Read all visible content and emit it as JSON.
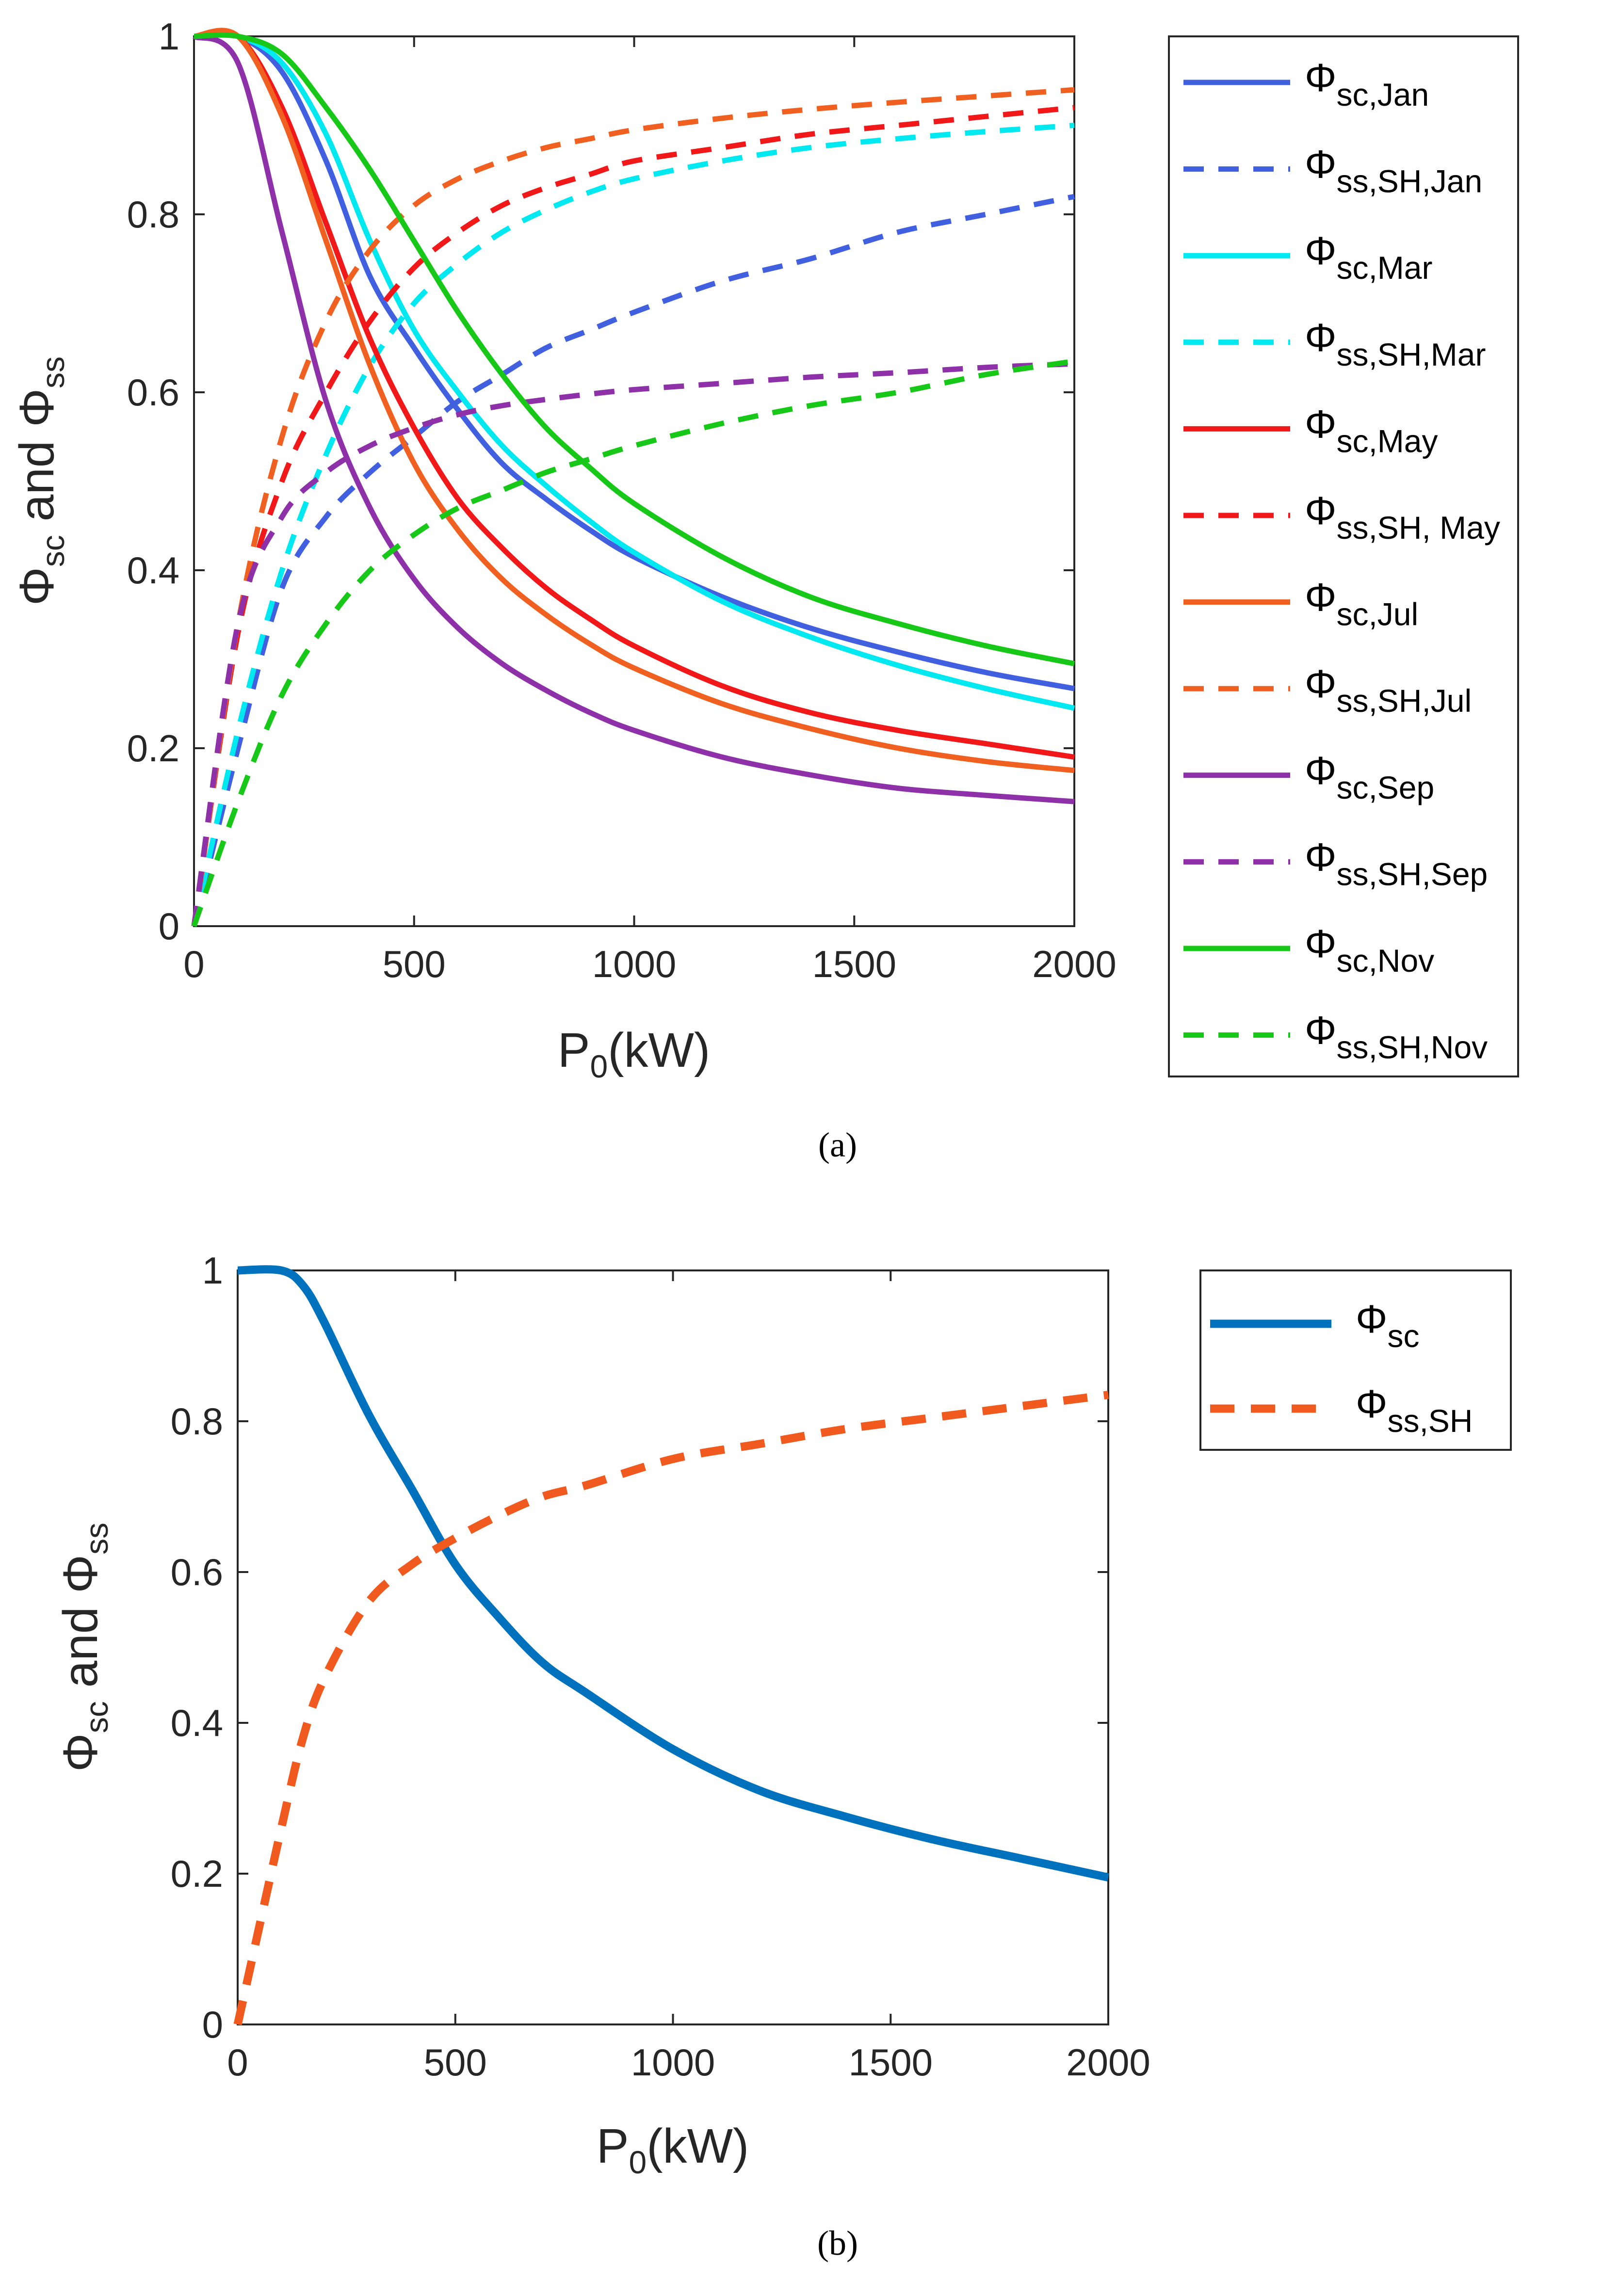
{
  "chart_data": [
    {
      "id": "a",
      "type": "line",
      "caption": "(a)",
      "xlabel": "P0(kW)",
      "xlabel_main": "P",
      "xlabel_sub": "0",
      "xlabel_rest": "(kW)",
      "ylabel": "Φsc and Φss",
      "ylabel_parts": {
        "phi1": "Φ",
        "sub1": "sc",
        "mid": " and ",
        "phi2": "Φ",
        "sub2": "ss"
      },
      "xlim": [
        0,
        2000
      ],
      "ylim": [
        0,
        1
      ],
      "xticks": [
        0,
        500,
        1000,
        1500,
        2000
      ],
      "yticks": [
        0,
        0.2,
        0.4,
        0.6,
        0.8,
        1
      ],
      "grid": false,
      "legend_position": "outside-right",
      "x": [
        0,
        100,
        200,
        300,
        400,
        500,
        600,
        700,
        800,
        900,
        1000,
        1200,
        1400,
        1600,
        1800,
        2000
      ],
      "series": [
        {
          "name": "Φsc,Jan",
          "symbol": "Φ",
          "sub": "sc,Jan",
          "color": "#4060e0",
          "style": "solid",
          "values": [
            1,
            1,
            0.96,
            0.86,
            0.73,
            0.65,
            0.58,
            0.52,
            0.48,
            0.445,
            0.415,
            0.37,
            0.335,
            0.308,
            0.285,
            0.267
          ]
        },
        {
          "name": "Φss,SH,Jan",
          "symbol": "Φ",
          "sub": "ss,SH,Jan",
          "color": "#4060e0",
          "style": "dashed",
          "values": [
            0,
            0.2,
            0.38,
            0.46,
            0.51,
            0.55,
            0.59,
            0.62,
            0.65,
            0.67,
            0.69,
            0.725,
            0.75,
            0.78,
            0.8,
            0.82
          ]
        },
        {
          "name": "Φsc,Mar",
          "symbol": "Φ",
          "sub": "sc,Mar",
          "color": "#00e8f0",
          "style": "solid",
          "values": [
            1,
            1,
            0.97,
            0.89,
            0.77,
            0.67,
            0.6,
            0.54,
            0.495,
            0.455,
            0.42,
            0.365,
            0.325,
            0.293,
            0.267,
            0.245
          ]
        },
        {
          "name": "Φss,SH,Mar",
          "symbol": "Φ",
          "sub": "ss,SH,Mar",
          "color": "#00e8f0",
          "style": "dashed",
          "values": [
            0,
            0.22,
            0.4,
            0.53,
            0.63,
            0.7,
            0.745,
            0.78,
            0.805,
            0.825,
            0.84,
            0.86,
            0.875,
            0.885,
            0.893,
            0.9
          ]
        },
        {
          "name": "Φsc,May",
          "symbol": "Φ",
          "sub": "sc,May",
          "color": "#f01818",
          "style": "solid",
          "values": [
            1,
            1,
            0.92,
            0.79,
            0.66,
            0.56,
            0.48,
            0.425,
            0.38,
            0.345,
            0.315,
            0.27,
            0.24,
            0.22,
            0.205,
            0.19
          ]
        },
        {
          "name": "Φss,SH, May",
          "symbol": "Φ",
          "sub": "ss,SH, May",
          "color": "#f01818",
          "style": "dashed",
          "values": [
            0,
            0.33,
            0.5,
            0.6,
            0.68,
            0.74,
            0.78,
            0.81,
            0.83,
            0.845,
            0.86,
            0.875,
            0.89,
            0.9,
            0.91,
            0.92
          ]
        },
        {
          "name": "Φsc,Jul",
          "symbol": "Φ",
          "sub": "sc,Jul",
          "color": "#f06020",
          "style": "solid",
          "values": [
            1,
            1,
            0.91,
            0.77,
            0.63,
            0.52,
            0.445,
            0.39,
            0.35,
            0.317,
            0.29,
            0.25,
            0.222,
            0.2,
            0.185,
            0.175
          ]
        },
        {
          "name": "Φss,SH,Jul",
          "symbol": "Φ",
          "sub": "ss,SH,Jul",
          "color": "#f06020",
          "style": "dashed",
          "values": [
            0,
            0.34,
            0.55,
            0.68,
            0.76,
            0.81,
            0.84,
            0.86,
            0.875,
            0.885,
            0.895,
            0.908,
            0.918,
            0.926,
            0.933,
            0.94
          ]
        },
        {
          "name": "Φsc,Sep",
          "symbol": "Φ",
          "sub": "sc,Sep",
          "color": "#8e30a8",
          "style": "solid",
          "values": [
            1,
            0.97,
            0.78,
            0.59,
            0.47,
            0.39,
            0.335,
            0.295,
            0.265,
            0.24,
            0.22,
            0.19,
            0.17,
            0.155,
            0.147,
            0.14
          ]
        },
        {
          "name": "Φss,SH,Sep",
          "symbol": "Φ",
          "sub": "ss,SH,Sep",
          "color": "#8e30a8",
          "style": "dashed",
          "values": [
            0,
            0.34,
            0.46,
            0.51,
            0.54,
            0.56,
            0.575,
            0.585,
            0.592,
            0.598,
            0.603,
            0.61,
            0.617,
            0.622,
            0.628,
            0.632
          ]
        },
        {
          "name": "Φsc,Nov",
          "symbol": "Φ",
          "sub": "sc,Nov",
          "color": "#18c818",
          "style": "solid",
          "values": [
            1,
            1,
            0.98,
            0.92,
            0.85,
            0.77,
            0.69,
            0.62,
            0.56,
            0.515,
            0.475,
            0.415,
            0.37,
            0.34,
            0.315,
            0.295
          ]
        },
        {
          "name": "Φss,SH,Nov",
          "symbol": "Φ",
          "sub": "ss,SH,Nov",
          "color": "#18c818",
          "style": "dashed",
          "values": [
            0,
            0.14,
            0.26,
            0.34,
            0.4,
            0.44,
            0.47,
            0.49,
            0.51,
            0.525,
            0.54,
            0.565,
            0.585,
            0.6,
            0.62,
            0.635
          ]
        }
      ]
    },
    {
      "id": "b",
      "type": "line",
      "caption": "(b)",
      "xlabel": "P0(kW)",
      "xlabel_main": "P",
      "xlabel_sub": "0",
      "xlabel_rest": "(kW)",
      "ylabel": "Φsc and Φss",
      "ylabel_parts": {
        "phi1": "Φ",
        "sub1": "sc",
        "mid": " and ",
        "phi2": "Φ",
        "sub2": "ss"
      },
      "xlim": [
        0,
        2000
      ],
      "ylim": [
        0,
        1
      ],
      "xticks": [
        0,
        500,
        1000,
        1500,
        2000
      ],
      "yticks": [
        0,
        0.2,
        0.4,
        0.6,
        0.8,
        1
      ],
      "grid": false,
      "legend_position": "outside-top-right",
      "x": [
        0,
        100,
        150,
        200,
        300,
        400,
        500,
        600,
        700,
        800,
        1000,
        1200,
        1400,
        1600,
        1800,
        2000
      ],
      "series": [
        {
          "name": "Φsc",
          "symbol": "Φ",
          "sub": "sc",
          "color": "#0072bd",
          "style": "solid",
          "values": [
            1,
            1,
            0.98,
            0.93,
            0.81,
            0.71,
            0.61,
            0.54,
            0.48,
            0.44,
            0.365,
            0.31,
            0.275,
            0.245,
            0.22,
            0.195
          ]
        },
        {
          "name": "Φss,SH",
          "symbol": "Φ",
          "sub": "ss,SH",
          "color": "#f05a1e",
          "style": "dashed",
          "values": [
            0,
            0.26,
            0.38,
            0.46,
            0.56,
            0.61,
            0.645,
            0.675,
            0.7,
            0.715,
            0.75,
            0.77,
            0.79,
            0.805,
            0.82,
            0.835
          ]
        }
      ]
    }
  ]
}
